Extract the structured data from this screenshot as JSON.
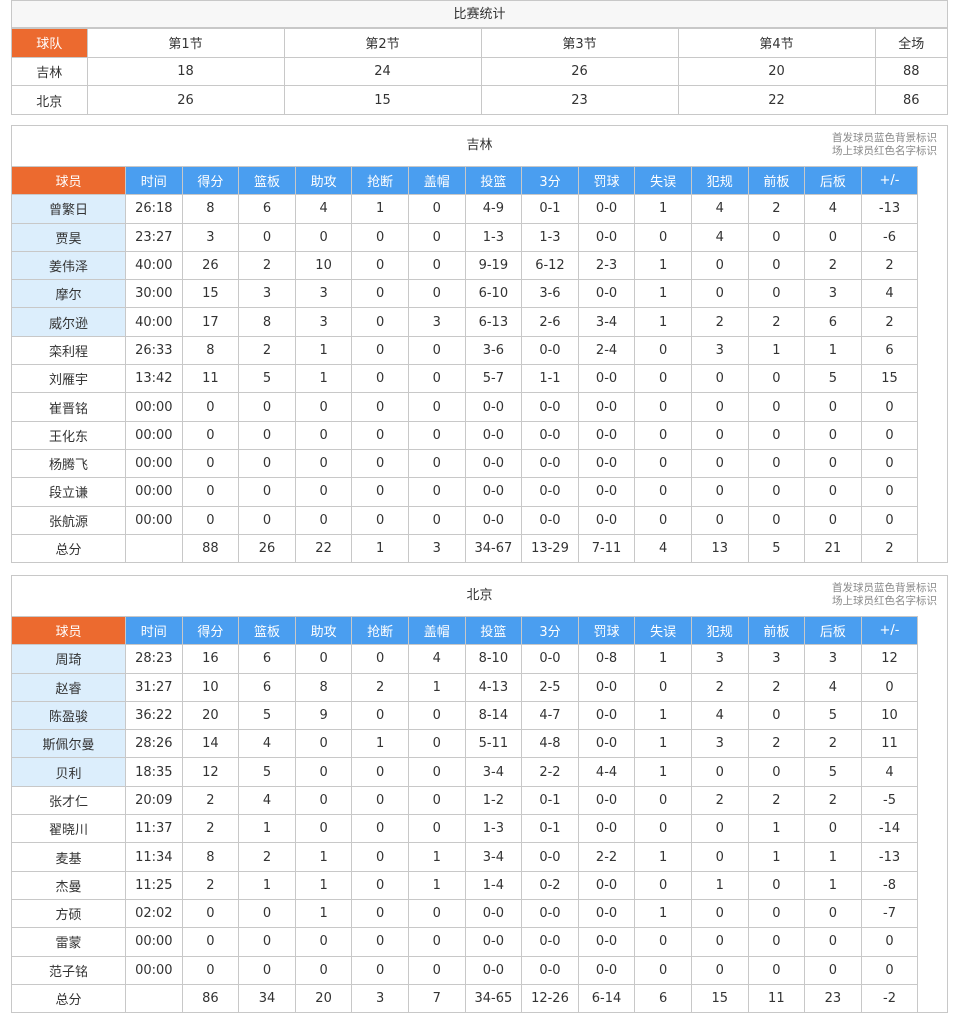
{
  "score": {
    "title": "比赛统计",
    "headers": [
      "球队",
      "第1节",
      "第2节",
      "第3节",
      "第4节",
      "全场"
    ],
    "rows": [
      [
        "吉林",
        "18",
        "24",
        "26",
        "20",
        "88"
      ],
      [
        "北京",
        "26",
        "15",
        "23",
        "22",
        "86"
      ]
    ]
  },
  "colors": {
    "orange": "#ec6a2f",
    "blue": "#4a9ef0",
    "starter_bg": "#dceefc",
    "on_court": "#e03030"
  },
  "legend": {
    "line1": "首发球员蓝色背景标识",
    "line2": "场上球员红色名字标识"
  },
  "stat_headers": [
    "球员",
    "时间",
    "得分",
    "篮板",
    "助攻",
    "抢断",
    "盖帽",
    "投篮",
    "3分",
    "罚球",
    "失误",
    "犯规",
    "前板",
    "后板",
    "+/-"
  ],
  "teams": [
    {
      "name": "吉林",
      "starters": 5,
      "players": [
        [
          "曾繁日",
          "26:18",
          "8",
          "6",
          "4",
          "1",
          "0",
          "4-9",
          "0-1",
          "0-0",
          "1",
          "4",
          "2",
          "4",
          "-13"
        ],
        [
          "贾昊",
          "23:27",
          "3",
          "0",
          "0",
          "0",
          "0",
          "1-3",
          "1-3",
          "0-0",
          "0",
          "4",
          "0",
          "0",
          "-6"
        ],
        [
          "姜伟泽",
          "40:00",
          "26",
          "2",
          "10",
          "0",
          "0",
          "9-19",
          "6-12",
          "2-3",
          "1",
          "0",
          "0",
          "2",
          "2"
        ],
        [
          "摩尔",
          "30:00",
          "15",
          "3",
          "3",
          "0",
          "0",
          "6-10",
          "3-6",
          "0-0",
          "1",
          "0",
          "0",
          "3",
          "4"
        ],
        [
          "威尔逊",
          "40:00",
          "17",
          "8",
          "3",
          "0",
          "3",
          "6-13",
          "2-6",
          "3-4",
          "1",
          "2",
          "2",
          "6",
          "2"
        ],
        [
          "栾利程",
          "26:33",
          "8",
          "2",
          "1",
          "0",
          "0",
          "3-6",
          "0-0",
          "2-4",
          "0",
          "3",
          "1",
          "1",
          "6"
        ],
        [
          "刘雁宇",
          "13:42",
          "11",
          "5",
          "1",
          "0",
          "0",
          "5-7",
          "1-1",
          "0-0",
          "0",
          "0",
          "0",
          "5",
          "15"
        ],
        [
          "崔晋铭",
          "00:00",
          "0",
          "0",
          "0",
          "0",
          "0",
          "0-0",
          "0-0",
          "0-0",
          "0",
          "0",
          "0",
          "0",
          "0"
        ],
        [
          "王化东",
          "00:00",
          "0",
          "0",
          "0",
          "0",
          "0",
          "0-0",
          "0-0",
          "0-0",
          "0",
          "0",
          "0",
          "0",
          "0"
        ],
        [
          "杨腾飞",
          "00:00",
          "0",
          "0",
          "0",
          "0",
          "0",
          "0-0",
          "0-0",
          "0-0",
          "0",
          "0",
          "0",
          "0",
          "0"
        ],
        [
          "段立谦",
          "00:00",
          "0",
          "0",
          "0",
          "0",
          "0",
          "0-0",
          "0-0",
          "0-0",
          "0",
          "0",
          "0",
          "0",
          "0"
        ],
        [
          "张航源",
          "00:00",
          "0",
          "0",
          "0",
          "0",
          "0",
          "0-0",
          "0-0",
          "0-0",
          "0",
          "0",
          "0",
          "0",
          "0"
        ]
      ],
      "total": [
        "总分",
        "",
        "88",
        "26",
        "22",
        "1",
        "3",
        "34-67",
        "13-29",
        "7-11",
        "4",
        "13",
        "5",
        "21",
        "2"
      ]
    },
    {
      "name": "北京",
      "starters": 5,
      "players": [
        [
          "周琦",
          "28:23",
          "16",
          "6",
          "0",
          "0",
          "4",
          "8-10",
          "0-0",
          "0-8",
          "1",
          "3",
          "3",
          "3",
          "12"
        ],
        [
          "赵睿",
          "31:27",
          "10",
          "6",
          "8",
          "2",
          "1",
          "4-13",
          "2-5",
          "0-0",
          "0",
          "2",
          "2",
          "4",
          "0"
        ],
        [
          "陈盈骏",
          "36:22",
          "20",
          "5",
          "9",
          "0",
          "0",
          "8-14",
          "4-7",
          "0-0",
          "1",
          "4",
          "0",
          "5",
          "10"
        ],
        [
          "斯佩尔曼",
          "28:26",
          "14",
          "4",
          "0",
          "1",
          "0",
          "5-11",
          "4-8",
          "0-0",
          "1",
          "3",
          "2",
          "2",
          "11"
        ],
        [
          "贝利",
          "18:35",
          "12",
          "5",
          "0",
          "0",
          "0",
          "3-4",
          "2-2",
          "4-4",
          "1",
          "0",
          "0",
          "5",
          "4"
        ],
        [
          "张才仁",
          "20:09",
          "2",
          "4",
          "0",
          "0",
          "0",
          "1-2",
          "0-1",
          "0-0",
          "0",
          "2",
          "2",
          "2",
          "-5"
        ],
        [
          "翟晓川",
          "11:37",
          "2",
          "1",
          "0",
          "0",
          "0",
          "1-3",
          "0-1",
          "0-0",
          "0",
          "0",
          "1",
          "0",
          "-14"
        ],
        [
          "麦基",
          "11:34",
          "8",
          "2",
          "1",
          "0",
          "1",
          "3-4",
          "0-0",
          "2-2",
          "1",
          "0",
          "1",
          "1",
          "-13"
        ],
        [
          "杰曼",
          "11:25",
          "2",
          "1",
          "1",
          "0",
          "1",
          "1-4",
          "0-2",
          "0-0",
          "0",
          "1",
          "0",
          "1",
          "-8"
        ],
        [
          "方硕",
          "02:02",
          "0",
          "0",
          "1",
          "0",
          "0",
          "0-0",
          "0-0",
          "0-0",
          "1",
          "0",
          "0",
          "0",
          "-7"
        ],
        [
          "雷蒙",
          "00:00",
          "0",
          "0",
          "0",
          "0",
          "0",
          "0-0",
          "0-0",
          "0-0",
          "0",
          "0",
          "0",
          "0",
          "0"
        ],
        [
          "范子铭",
          "00:00",
          "0",
          "0",
          "0",
          "0",
          "0",
          "0-0",
          "0-0",
          "0-0",
          "0",
          "0",
          "0",
          "0",
          "0"
        ]
      ],
      "total": [
        "总分",
        "",
        "86",
        "34",
        "20",
        "3",
        "7",
        "34-65",
        "12-26",
        "6-14",
        "6",
        "15",
        "11",
        "23",
        "-2"
      ]
    }
  ]
}
